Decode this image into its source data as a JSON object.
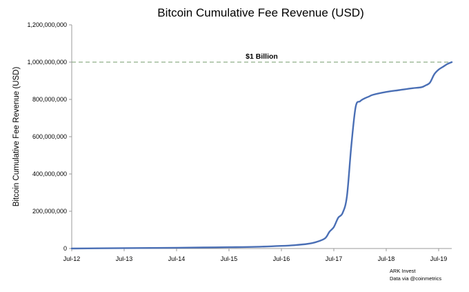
{
  "chart_data": {
    "type": "line",
    "title": "Bitcoin Cumulative Fee Revenue (USD)",
    "xlabel": "",
    "ylabel": "Bitcoin Cumulative Fee Revenue (USD)",
    "ylim": [
      0,
      1200000000
    ],
    "yticks": [
      0,
      200000000,
      400000000,
      600000000,
      800000000,
      1000000000,
      1200000000
    ],
    "ytick_labels": [
      "0",
      "200,000,000",
      "400,000,000",
      "600,000,000",
      "800,000,000",
      "1,000,000,000",
      "1,200,000,000"
    ],
    "xlim": [
      "2012-07",
      "2019-10"
    ],
    "xticks": [
      "2012-07",
      "2013-07",
      "2014-07",
      "2015-07",
      "2016-07",
      "2017-07",
      "2018-07",
      "2019-07"
    ],
    "xtick_labels": [
      "Jul-12",
      "Jul-13",
      "Jul-14",
      "Jul-15",
      "Jul-16",
      "Jul-17",
      "Jul-18",
      "Jul-19"
    ],
    "grid": false,
    "series": [
      {
        "color": "#4a6fb5",
        "x": [
          "2012-07",
          "2013-01",
          "2013-07",
          "2014-01",
          "2014-07",
          "2015-01",
          "2015-07",
          "2016-01",
          "2016-07",
          "2016-10",
          "2017-01",
          "2017-03",
          "2017-05",
          "2017-06",
          "2017-07",
          "2017-08",
          "2017-09",
          "2017-10",
          "2017-11",
          "2017-12",
          "2018-01",
          "2018-02",
          "2018-03",
          "2018-04",
          "2018-07",
          "2018-10",
          "2019-01",
          "2019-03",
          "2019-04",
          "2019-05",
          "2019-06",
          "2019-07",
          "2019-08",
          "2019-09",
          "2019-10"
        ],
        "y": [
          0,
          1000000,
          2000000,
          3000000,
          4000000,
          5500000,
          7000000,
          9000000,
          14000000,
          18000000,
          25000000,
          35000000,
          55000000,
          90000000,
          115000000,
          165000000,
          190000000,
          280000000,
          550000000,
          760000000,
          790000000,
          805000000,
          815000000,
          825000000,
          840000000,
          850000000,
          860000000,
          865000000,
          875000000,
          890000000,
          935000000,
          960000000,
          975000000,
          990000000,
          1000000000
        ]
      }
    ],
    "reference_line": {
      "y": 1000000000,
      "label": "$1 Billion",
      "color": "#8fad86",
      "style": "dashed"
    }
  },
  "source_note": [
    "ARK Invest",
    "Data via @coinmetrics"
  ]
}
